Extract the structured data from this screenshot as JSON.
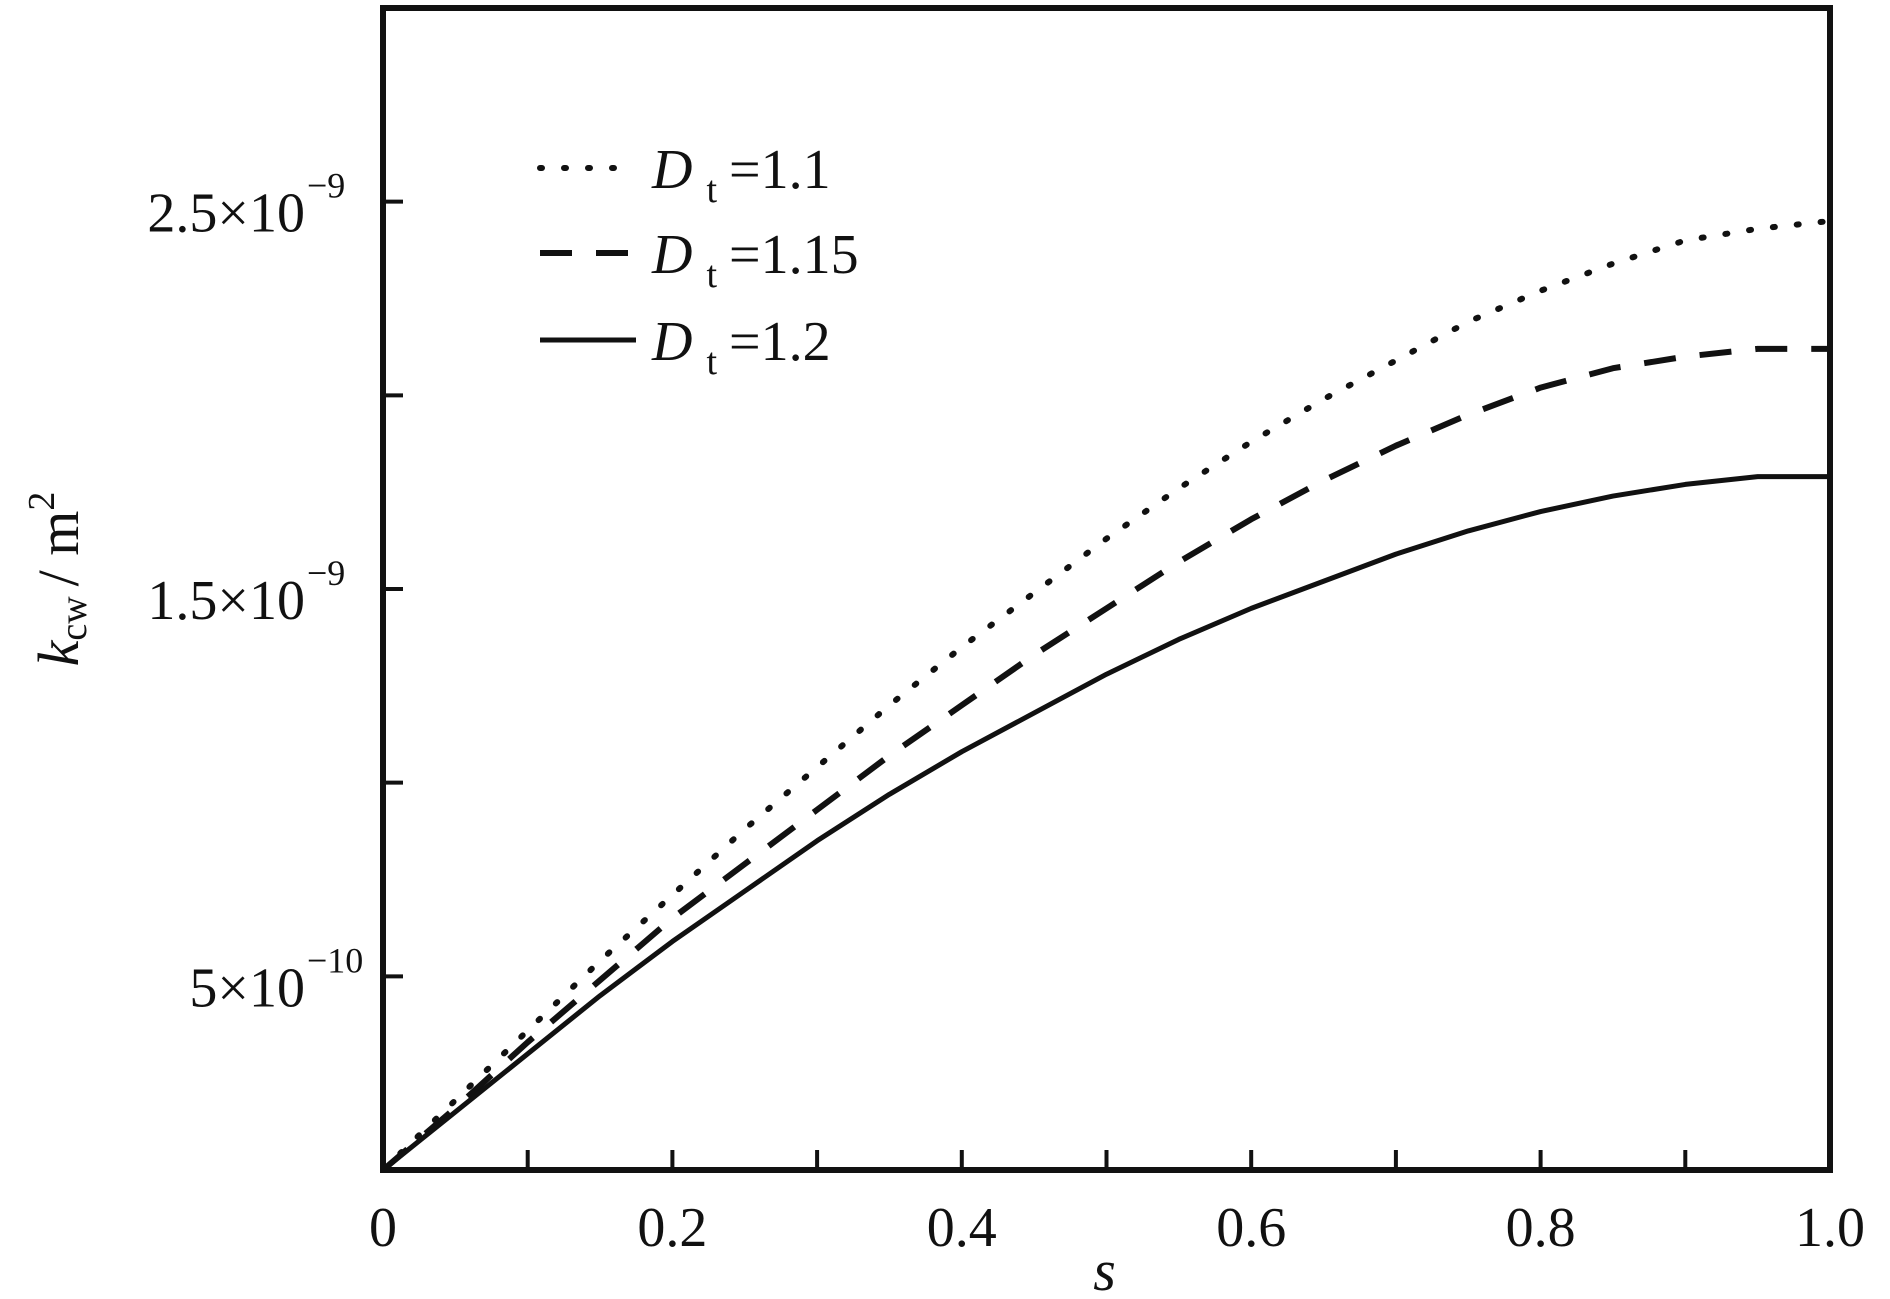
{
  "chart_data": {
    "type": "line",
    "x_axis": {
      "label": "s",
      "range": [
        0,
        1.0
      ],
      "ticks": [
        0,
        0.1,
        0.2,
        0.3,
        0.4,
        0.5,
        0.6,
        0.7,
        0.8,
        0.9,
        1.0
      ],
      "tick_labels": [
        {
          "value": 0,
          "text": "0"
        },
        {
          "value": 0.2,
          "text": "0.2"
        },
        {
          "value": 0.4,
          "text": "0.4"
        },
        {
          "value": 0.6,
          "text": "0.6"
        },
        {
          "value": 0.8,
          "text": "0.8"
        },
        {
          "value": 1.0,
          "text": "1.0"
        }
      ]
    },
    "y_axis": {
      "label_main": "k",
      "label_sub": "cw",
      "label_unit": "/ m",
      "label_exp": "2",
      "range": [
        0,
        3e-09
      ],
      "ticks": [
        5e-10,
        1e-09,
        1.5e-09,
        2e-09,
        2.5e-09
      ],
      "tick_labels": [
        {
          "value": 5e-10,
          "mantissa": "5×10",
          "exponent": "−10"
        },
        {
          "value": 1.5e-09,
          "mantissa": "1.5×10",
          "exponent": "−9"
        },
        {
          "value": 2.5e-09,
          "mantissa": "2.5×10",
          "exponent": "−9"
        }
      ]
    },
    "legend": {
      "position": "top-left",
      "entries": [
        {
          "symbol": "D",
          "sub": "t",
          "text": "=1.1",
          "style": "dotted"
        },
        {
          "symbol": "D",
          "sub": "t",
          "text": "=1.15",
          "style": "dashed"
        },
        {
          "symbol": "D",
          "sub": "t",
          "text": "=1.2",
          "style": "solid"
        }
      ]
    },
    "series": [
      {
        "style": "dotted",
        "x": [
          0,
          0.05,
          0.1,
          0.15,
          0.2,
          0.25,
          0.3,
          0.35,
          0.4,
          0.45,
          0.5,
          0.55,
          0.6,
          0.65,
          0.7,
          0.75,
          0.8,
          0.85,
          0.9,
          0.95,
          1.0
        ],
        "y": [
          0,
          1.8e-10,
          3.6e-10,
          5.4e-10,
          7.1e-10,
          8.8e-10,
          1.04e-09,
          1.2e-09,
          1.35e-09,
          1.49e-09,
          1.63e-09,
          1.76e-09,
          1.88e-09,
          1.99e-09,
          2.09e-09,
          2.19e-09,
          2.27e-09,
          2.34e-09,
          2.4e-09,
          2.43e-09,
          2.45e-09
        ]
      },
      {
        "style": "dashed",
        "x": [
          0,
          0.05,
          0.1,
          0.15,
          0.2,
          0.25,
          0.3,
          0.35,
          0.4,
          0.45,
          0.5,
          0.55,
          0.6,
          0.65,
          0.7,
          0.75,
          0.8,
          0.85,
          0.9,
          0.95,
          1.0
        ],
        "y": [
          0,
          1.6e-10,
          3.3e-10,
          4.9e-10,
          6.5e-10,
          7.9e-10,
          9.3e-10,
          1.07e-09,
          1.2e-09,
          1.33e-09,
          1.45e-09,
          1.57e-09,
          1.68e-09,
          1.78e-09,
          1.87e-09,
          1.95e-09,
          2.02e-09,
          2.07e-09,
          2.1e-09,
          2.12e-09,
          2.12e-09
        ]
      },
      {
        "style": "solid",
        "x": [
          0,
          0.05,
          0.1,
          0.15,
          0.2,
          0.25,
          0.3,
          0.35,
          0.4,
          0.45,
          0.5,
          0.55,
          0.6,
          0.65,
          0.7,
          0.75,
          0.8,
          0.85,
          0.9,
          0.95,
          1.0
        ],
        "y": [
          0,
          1.5e-10,
          3e-10,
          4.5e-10,
          5.9e-10,
          7.2e-10,
          8.5e-10,
          9.7e-10,
          1.08e-09,
          1.18e-09,
          1.28e-09,
          1.37e-09,
          1.45e-09,
          1.52e-09,
          1.59e-09,
          1.65e-09,
          1.7e-09,
          1.74e-09,
          1.77e-09,
          1.79e-09,
          1.79e-09
        ]
      }
    ]
  }
}
